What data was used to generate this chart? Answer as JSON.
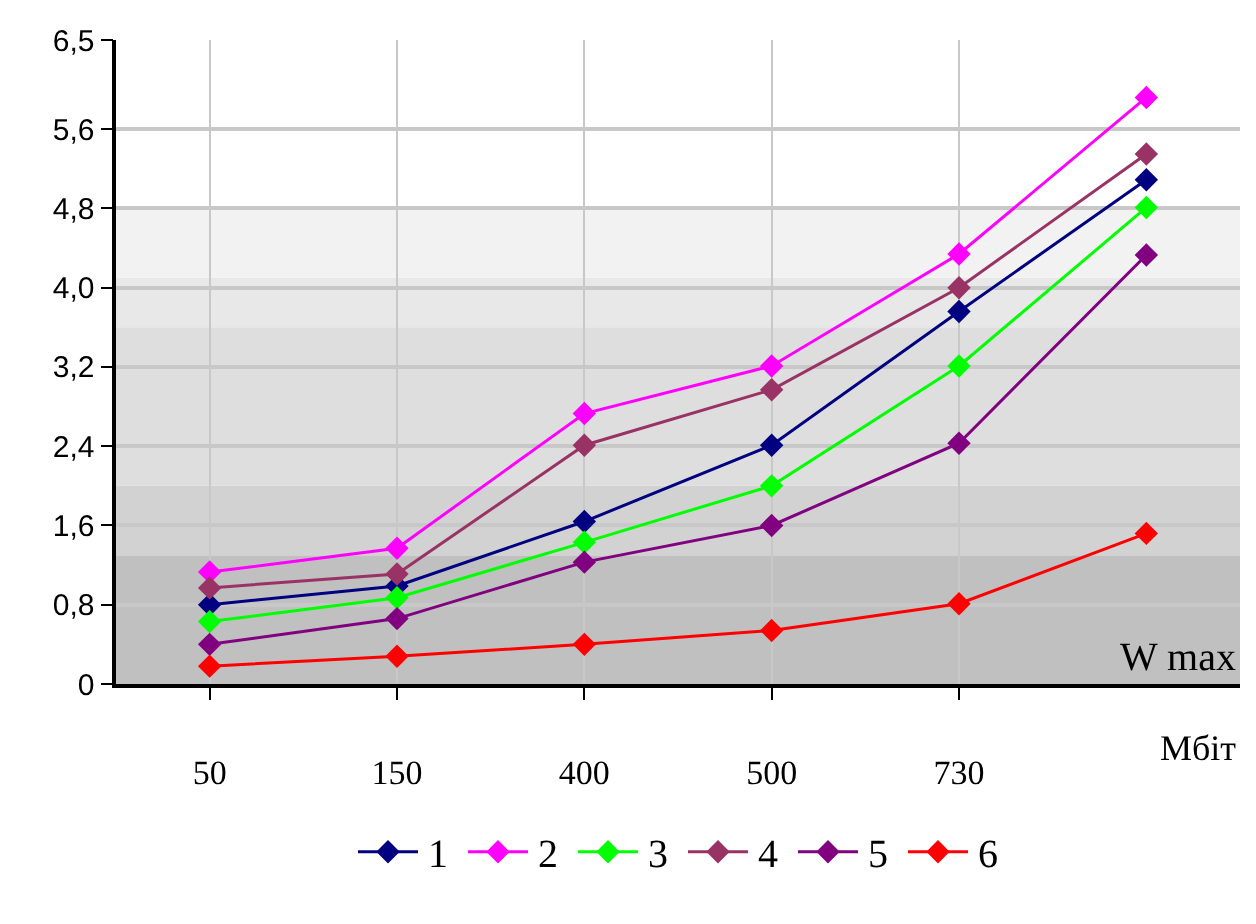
{
  "chart_data": {
    "type": "line",
    "xlabel": "Мбіт",
    "categories": [
      "50",
      "150",
      "400",
      "500",
      "730",
      null
    ],
    "series": [
      {
        "name": "1",
        "color": "#000080",
        "values": [
          0.8,
          0.99,
          1.64,
          2.41,
          3.76,
          5.09
        ]
      },
      {
        "name": "2",
        "color": "#ff00ff",
        "values": [
          1.13,
          1.37,
          2.73,
          3.21,
          4.34,
          5.92
        ]
      },
      {
        "name": "3",
        "color": "#00ff00",
        "values": [
          0.63,
          0.87,
          1.43,
          2.0,
          3.21,
          4.81
        ]
      },
      {
        "name": "4",
        "color": "#993366",
        "values": [
          0.97,
          1.11,
          2.41,
          2.97,
          4.0,
          5.35
        ]
      },
      {
        "name": "5",
        "color": "#800080",
        "values": [
          0.4,
          0.66,
          1.23,
          1.6,
          2.43,
          4.33
        ]
      },
      {
        "name": "6",
        "color": "#ff0000",
        "values": [
          0.18,
          0.28,
          0.4,
          0.54,
          0.81,
          1.52
        ]
      }
    ],
    "ylim": [
      0,
      6.5
    ],
    "yticks": [
      0,
      {
        "value": 0.8,
        "label": "0,8"
      },
      {
        "value": 1.6,
        "label": "1,6"
      },
      {
        "value": 2.4,
        "label": "2,4"
      },
      {
        "value": 3.2,
        "label": "3,2"
      },
      {
        "value": 4.0,
        "label": "4,0"
      },
      {
        "value": 4.8,
        "label": "4,8"
      },
      {
        "value": 5.6,
        "label": "5,6"
      },
      {
        "value": 6.5,
        "label": "6,5"
      }
    ],
    "bands": [
      {
        "axis": "y",
        "from": 0,
        "to": 1.3,
        "label": "W max",
        "color": "#c0c0c0"
      },
      {
        "axis": "y",
        "from": 1.3,
        "to": 2.0,
        "color": "#d2d2d2"
      },
      {
        "axis": "y",
        "from": 2.0,
        "to": 3.6,
        "color": "#dedede"
      },
      {
        "axis": "y",
        "from": 3.6,
        "to": 4.1,
        "color": "#e8e8e8"
      },
      {
        "axis": "y",
        "from": 4.1,
        "to": 4.8,
        "color": "#f2f2f2"
      }
    ],
    "grid": true,
    "legend": "bottom",
    "marker": "diamond",
    "line_style": "solid"
  }
}
